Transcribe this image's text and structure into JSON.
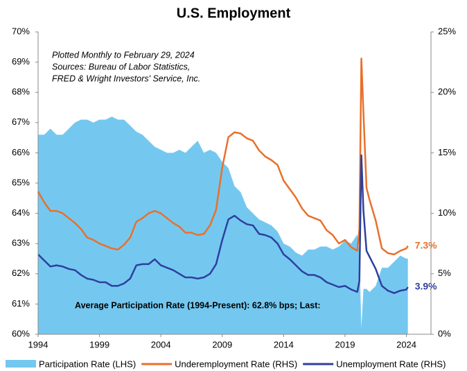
{
  "chart_data": {
    "type": "line",
    "title": "U.S. Employment",
    "annotations": [
      "Plotted Monthly to February 29, 2024",
      "Sources: Bureau of Labor Statistics,",
      "FRED & Wright Investors' Service, Inc.",
      "Average Participation Rate (1994-Present): 62.8% bps; Last:"
    ],
    "x": [
      1994,
      1994.5,
      1995,
      1995.5,
      1996,
      1996.5,
      1997,
      1997.5,
      1998,
      1998.5,
      1999,
      1999.5,
      2000,
      2000.5,
      2001,
      2001.5,
      2002,
      2002.5,
      2003,
      2003.5,
      2004,
      2004.5,
      2005,
      2005.5,
      2006,
      2006.5,
      2007,
      2007.5,
      2008,
      2008.5,
      2009,
      2009.5,
      2010,
      2010.5,
      2011,
      2011.5,
      2012,
      2012.5,
      2013,
      2013.5,
      2014,
      2014.5,
      2015,
      2015.5,
      2016,
      2016.5,
      2017,
      2017.5,
      2018,
      2018.5,
      2019,
      2019.5,
      2020,
      2020.17,
      2020.33,
      2020.5,
      2020.75,
      2021,
      2021.5,
      2022,
      2022.5,
      2023,
      2023.5,
      2024,
      2024.12
    ],
    "xlim": [
      1994,
      2026
    ],
    "xticks": [
      1994,
      1999,
      2004,
      2009,
      2014,
      2019,
      2024
    ],
    "ylim": [
      60,
      70
    ],
    "yticks": [
      {
        "value": 60,
        "label": "60%"
      },
      {
        "value": 61,
        "label": "61%"
      },
      {
        "value": 62,
        "label": "62%"
      },
      {
        "value": 63,
        "label": "63%"
      },
      {
        "value": 64,
        "label": "64%"
      },
      {
        "value": 65,
        "label": "65%"
      },
      {
        "value": 66,
        "label": "66%"
      },
      {
        "value": 67,
        "label": "67%"
      },
      {
        "value": 68,
        "label": "68%"
      },
      {
        "value": 69,
        "label": "69%"
      },
      {
        "value": 70,
        "label": "70%"
      }
    ],
    "y2lim": [
      0,
      25
    ],
    "y2ticks": [
      {
        "value": 0,
        "label": "0%"
      },
      {
        "value": 5,
        "label": "5%"
      },
      {
        "value": 10,
        "label": "10%"
      },
      {
        "value": 15,
        "label": "15%"
      },
      {
        "value": 20,
        "label": "20%"
      },
      {
        "value": 25,
        "label": "25%"
      }
    ],
    "grid": false,
    "legend": "bottom",
    "series": [
      {
        "name": "Participation Rate (LHS)",
        "type": "area",
        "color": "#74c8f0",
        "axis": "y",
        "values": [
          66.6,
          66.6,
          66.8,
          66.6,
          66.6,
          66.8,
          67.0,
          67.1,
          67.1,
          67.0,
          67.1,
          67.1,
          67.2,
          67.1,
          67.1,
          66.9,
          66.7,
          66.6,
          66.4,
          66.2,
          66.1,
          66.0,
          66.0,
          66.1,
          66.0,
          66.2,
          66.4,
          66.0,
          66.1,
          66.0,
          65.7,
          65.5,
          64.9,
          64.7,
          64.2,
          64.0,
          63.8,
          63.7,
          63.6,
          63.4,
          63.0,
          62.9,
          62.7,
          62.6,
          62.8,
          62.8,
          62.9,
          62.9,
          62.8,
          62.9,
          63.1,
          63.0,
          63.3,
          62.7,
          60.2,
          61.5,
          61.5,
          61.4,
          61.6,
          62.2,
          62.2,
          62.4,
          62.6,
          62.5,
          62.5
        ]
      },
      {
        "name": "Underemployment Rate (RHS)",
        "type": "line",
        "color": "#e8702a",
        "axis": "y2",
        "values": [
          11.8,
          10.9,
          10.2,
          10.2,
          10.0,
          9.6,
          9.2,
          8.7,
          8.0,
          7.8,
          7.5,
          7.3,
          7.1,
          7.0,
          7.4,
          8.0,
          9.3,
          9.6,
          10.0,
          10.2,
          10.0,
          9.6,
          9.2,
          8.9,
          8.4,
          8.4,
          8.2,
          8.3,
          9.0,
          10.3,
          13.8,
          16.3,
          16.7,
          16.6,
          16.2,
          16.0,
          15.2,
          14.7,
          14.4,
          14.0,
          12.7,
          12.0,
          11.3,
          10.4,
          9.8,
          9.6,
          9.4,
          8.6,
          8.2,
          7.5,
          7.8,
          7.2,
          6.9,
          8.7,
          22.8,
          18.3,
          12.1,
          11.1,
          9.4,
          7.1,
          6.7,
          6.6,
          6.9,
          7.1,
          7.3
        ],
        "value_labels": [
          null,
          null,
          null,
          null,
          null,
          null,
          null,
          null,
          null,
          null,
          null,
          null,
          null,
          null,
          null,
          null,
          null,
          null,
          null,
          null,
          null,
          null,
          null,
          null,
          null,
          null,
          null,
          null,
          null,
          null,
          null,
          null,
          null,
          null,
          null,
          null,
          null,
          null,
          null,
          null,
          null,
          null,
          null,
          null,
          null,
          null,
          null,
          null,
          null,
          null,
          null,
          null,
          null,
          null,
          null,
          null,
          null,
          null,
          null,
          null,
          null,
          null,
          null,
          null,
          "7.3%"
        ]
      },
      {
        "name": "Unemployment Rate (RHS)",
        "type": "line",
        "color": "#2e3f9e",
        "axis": "y2",
        "values": [
          6.6,
          6.1,
          5.6,
          5.7,
          5.6,
          5.4,
          5.3,
          4.9,
          4.6,
          4.5,
          4.3,
          4.3,
          4.0,
          4.0,
          4.2,
          4.6,
          5.7,
          5.8,
          5.8,
          6.2,
          5.7,
          5.5,
          5.3,
          5.0,
          4.7,
          4.7,
          4.6,
          4.7,
          5.0,
          5.8,
          7.8,
          9.5,
          9.8,
          9.4,
          9.1,
          9.0,
          8.3,
          8.2,
          8.0,
          7.5,
          6.6,
          6.2,
          5.7,
          5.2,
          4.9,
          4.9,
          4.7,
          4.3,
          4.1,
          3.9,
          4.0,
          3.7,
          3.5,
          4.4,
          14.8,
          10.2,
          6.9,
          6.4,
          5.4,
          4.0,
          3.6,
          3.4,
          3.6,
          3.7,
          3.9
        ],
        "value_labels": [
          null,
          null,
          null,
          null,
          null,
          null,
          null,
          null,
          null,
          null,
          null,
          null,
          null,
          null,
          null,
          null,
          null,
          null,
          null,
          null,
          null,
          null,
          null,
          null,
          null,
          null,
          null,
          null,
          null,
          null,
          null,
          null,
          null,
          null,
          null,
          null,
          null,
          null,
          null,
          null,
          null,
          null,
          null,
          null,
          null,
          null,
          null,
          null,
          null,
          null,
          null,
          null,
          null,
          null,
          null,
          null,
          null,
          null,
          null,
          null,
          null,
          null,
          null,
          null,
          "3.9%"
        ]
      }
    ]
  }
}
